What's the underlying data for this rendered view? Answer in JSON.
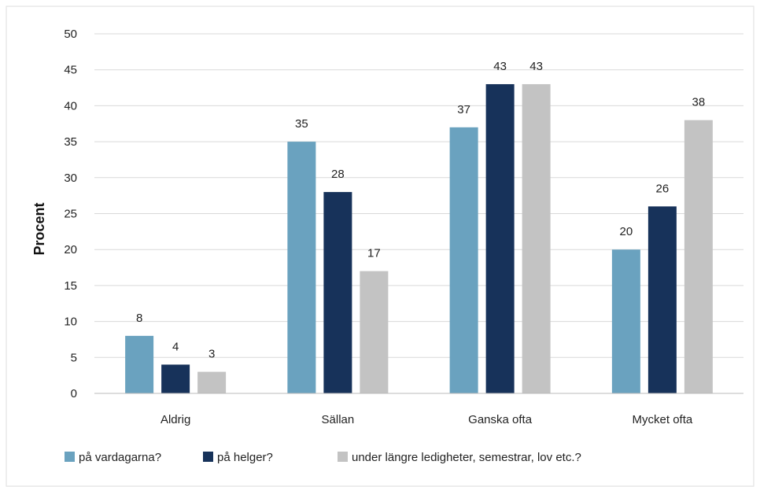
{
  "chart_data": {
    "type": "bar",
    "title": "",
    "xlabel": "",
    "ylabel": "Procent",
    "ylim": [
      0,
      50
    ],
    "yticks": [
      0,
      5,
      10,
      15,
      20,
      25,
      30,
      35,
      40,
      45,
      50
    ],
    "categories": [
      "Aldrig",
      "Sällan",
      "Ganska ofta",
      "Mycket ofta"
    ],
    "series": [
      {
        "name": "på vardagarna?",
        "color": "#6aa2bf",
        "values": [
          8,
          35,
          37,
          20
        ]
      },
      {
        "name": "på helger?",
        "color": "#17325a",
        "values": [
          4,
          28,
          43,
          26
        ]
      },
      {
        "name": "under längre ledigheter, semestrar, lov etc.?",
        "color": "#c3c3c3",
        "values": [
          3,
          17,
          43,
          38
        ]
      }
    ],
    "grid": true,
    "legend": "bottom"
  }
}
